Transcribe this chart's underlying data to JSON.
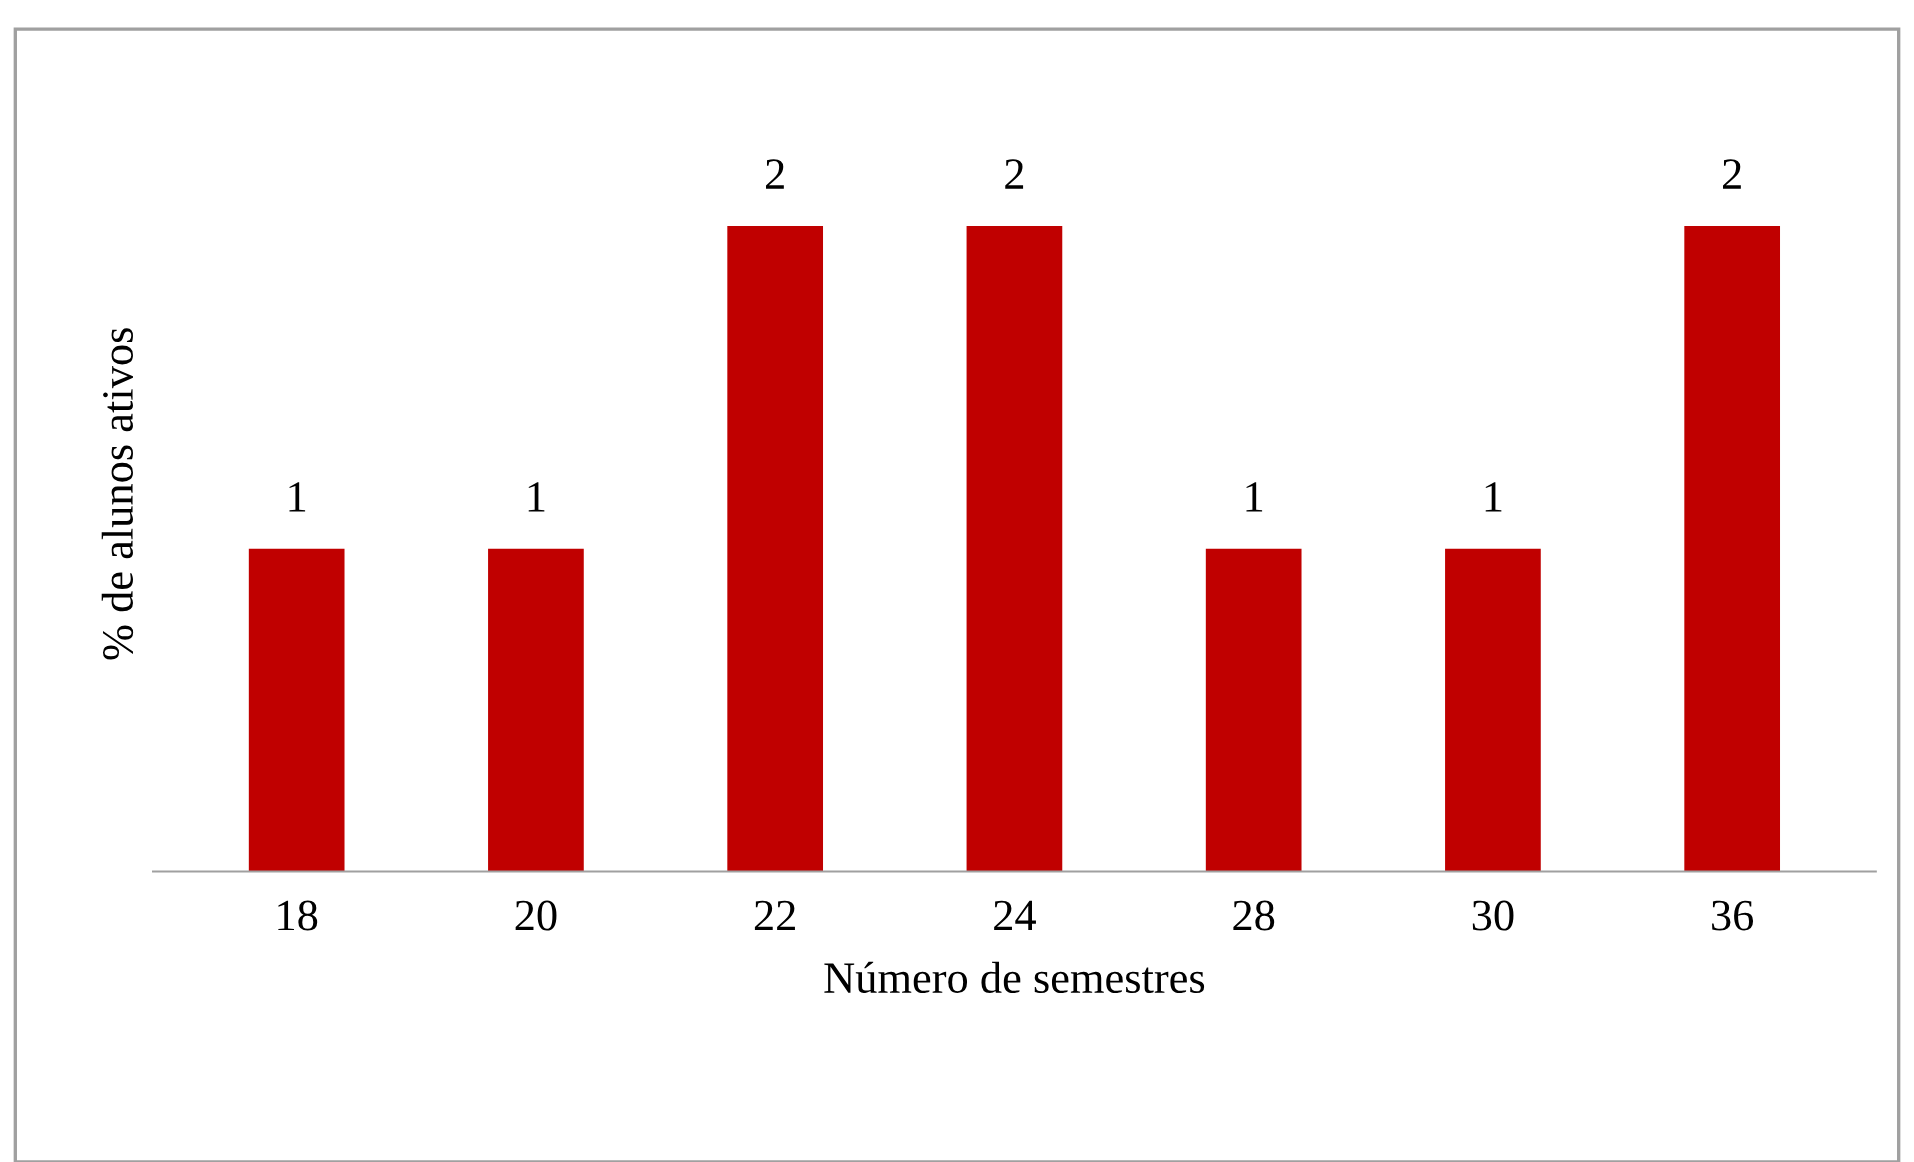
{
  "chart_data": {
    "type": "bar",
    "xlabel": "Número de semestres",
    "ylabel": "% de alunos ativos",
    "categories": [
      "18",
      "20",
      "22",
      "24",
      "28",
      "30",
      "36"
    ],
    "values": [
      1,
      1,
      2,
      2,
      1,
      1,
      2
    ],
    "color": "#c00000",
    "data_labels": true,
    "grid": false
  }
}
